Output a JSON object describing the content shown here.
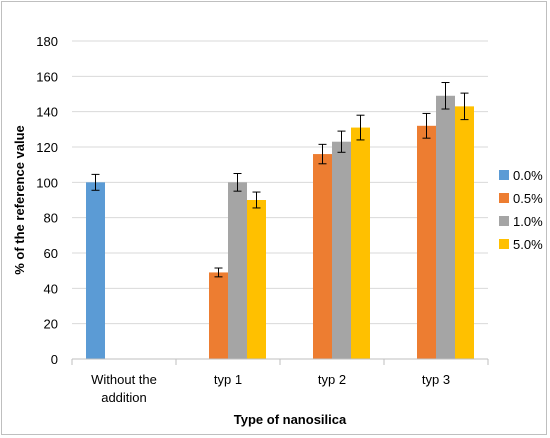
{
  "chart_data": {
    "type": "bar",
    "title": "",
    "xlabel": "Type of nanosilica",
    "ylabel": "% of the reference value",
    "ylim": [
      0,
      180
    ],
    "yticks": [
      "0",
      "20",
      "40",
      "60",
      "80",
      "100",
      "120",
      "140",
      "160",
      "180"
    ],
    "categories": [
      [
        "Without the",
        "addition"
      ],
      [
        "typ 1"
      ],
      [
        "typ 2"
      ],
      [
        "typ 3"
      ]
    ],
    "grid": "horizontal",
    "legend_position": "right",
    "series": [
      {
        "name": "0.0%",
        "color": "#5b9bd5",
        "values": [
          100,
          null,
          null,
          null
        ],
        "errors": [
          4.5,
          null,
          null,
          null
        ]
      },
      {
        "name": "0.5%",
        "color": "#ed7d31",
        "values": [
          null,
          49,
          116,
          132
        ],
        "errors": [
          null,
          2.5,
          5.5,
          7
        ]
      },
      {
        "name": "1.0%",
        "color": "#a5a5a5",
        "values": [
          null,
          100,
          123,
          149
        ],
        "errors": [
          null,
          5,
          6,
          7.5
        ]
      },
      {
        "name": "5.0%",
        "color": "#ffc000",
        "values": [
          null,
          90,
          131,
          143
        ],
        "errors": [
          null,
          4.5,
          7,
          7.5
        ]
      }
    ]
  }
}
